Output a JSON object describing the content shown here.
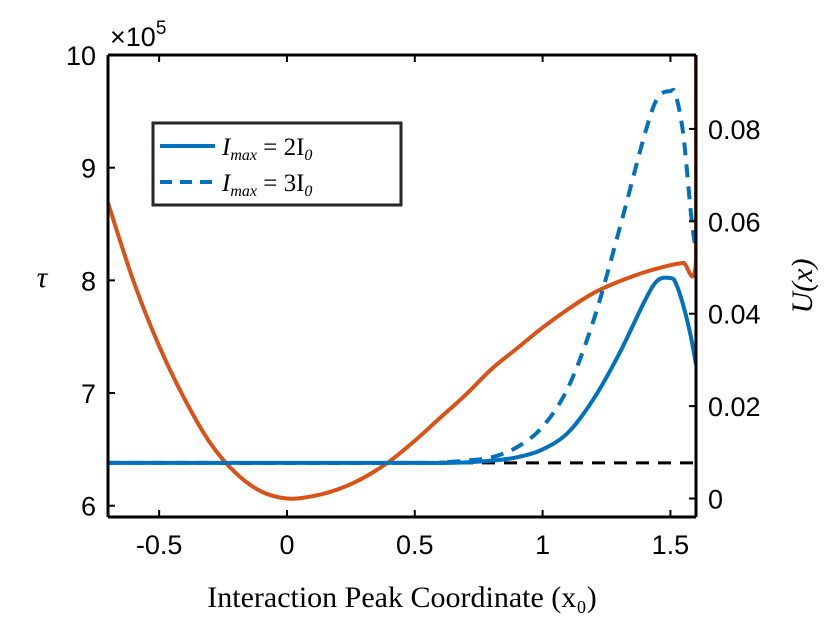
{
  "chart_data": {
    "type": "line",
    "title": "",
    "xlabel": "Interaction Peak Coordinate (x₀)",
    "ylabel_left": "τ",
    "ylabel_right": "U(x)",
    "xlim": [
      -0.7,
      1.6
    ],
    "ylim_left": [
      5.9,
      10.0
    ],
    "ylim_right": [
      -0.004,
      0.096
    ],
    "left_multiplier": "×10",
    "left_multiplier_exp": "5",
    "xticks": [
      "-0.5",
      "0",
      "0.5",
      "1",
      "1.5"
    ],
    "xtick_values": [
      -0.5,
      0,
      0.5,
      1,
      1.5
    ],
    "yticks_left": [
      "6",
      "7",
      "8",
      "9",
      "10"
    ],
    "ytick_left_values": [
      6,
      7,
      8,
      9,
      10
    ],
    "yticks_right": [
      "0",
      "0.02",
      "0.04",
      "0.06",
      "0.08"
    ],
    "ytick_right_values": [
      0,
      0.02,
      0.04,
      0.06,
      0.08
    ],
    "colors": {
      "tau": "#0072BD",
      "potential": "#D95319",
      "baseline": "#000000",
      "frame": "#000000"
    },
    "legend": [
      {
        "label": "I",
        "sub": "max",
        "eq": " = 2I",
        "eq_sub": "0",
        "style": "solid"
      },
      {
        "label": "I",
        "sub": "max",
        "eq": " = 3I",
        "eq_sub": "0",
        "style": "dashed"
      }
    ],
    "series": [
      {
        "name": "I_max = 2I_0",
        "axis": "left",
        "style": "solid",
        "x": [
          -0.7,
          0.5,
          0.6,
          0.7,
          0.8,
          0.9,
          1.0,
          1.1,
          1.2,
          1.3,
          1.4,
          1.45,
          1.5,
          1.52,
          1.55,
          1.58,
          1.6
        ],
        "y": [
          6.38,
          6.38,
          6.38,
          6.385,
          6.4,
          6.43,
          6.5,
          6.65,
          6.95,
          7.35,
          7.82,
          8.0,
          8.02,
          7.98,
          7.78,
          7.5,
          7.25
        ]
      },
      {
        "name": "I_max = 3I_0",
        "axis": "left",
        "style": "dashed",
        "x": [
          -0.7,
          0.5,
          0.6,
          0.7,
          0.8,
          0.9,
          1.0,
          1.1,
          1.2,
          1.3,
          1.4,
          1.45,
          1.5,
          1.52,
          1.55,
          1.58,
          1.6
        ],
        "y": [
          6.38,
          6.38,
          6.385,
          6.4,
          6.43,
          6.52,
          6.7,
          7.05,
          7.65,
          8.45,
          9.3,
          9.62,
          9.68,
          9.65,
          9.3,
          8.6,
          8.25
        ]
      },
      {
        "name": "baseline",
        "axis": "left",
        "style": "dashed",
        "x": [
          -0.7,
          1.6
        ],
        "y": [
          6.38,
          6.38
        ]
      },
      {
        "name": "U(x)",
        "axis": "right",
        "style": "solid",
        "x": [
          -0.7,
          -0.6,
          -0.5,
          -0.4,
          -0.3,
          -0.2,
          -0.1,
          0.0,
          0.1,
          0.2,
          0.3,
          0.4,
          0.5,
          0.6,
          0.7,
          0.8,
          0.9,
          1.0,
          1.1,
          1.2,
          1.3,
          1.4,
          1.5,
          1.55,
          1.6,
          1.6
        ],
        "y": [
          0.064,
          0.047,
          0.033,
          0.0215,
          0.012,
          0.0055,
          0.0015,
          0.0,
          0.0005,
          0.002,
          0.0045,
          0.008,
          0.0125,
          0.0175,
          0.0225,
          0.028,
          0.0325,
          0.037,
          0.041,
          0.0445,
          0.047,
          0.049,
          0.0505,
          0.051,
          0.0515,
          0.096
        ]
      }
    ]
  }
}
